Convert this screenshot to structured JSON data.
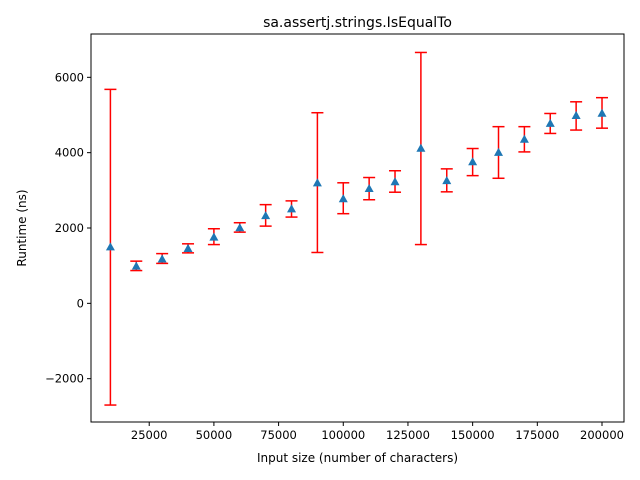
{
  "chart_data": {
    "type": "scatter",
    "title": "sa.assertj.strings.IsEqualTo",
    "xlabel": "Input size (number of characters)",
    "ylabel": "Runtime (ns)",
    "xlim": [
      2500,
      208500
    ],
    "ylim": [
      -3150,
      7150
    ],
    "xticks": [
      25000,
      50000,
      75000,
      100000,
      125000,
      150000,
      175000,
      200000
    ],
    "xtick_labels": [
      "25000",
      "50000",
      "75000",
      "100000",
      "125000",
      "150000",
      "175000",
      "200000"
    ],
    "yticks": [
      -2000,
      0,
      2000,
      4000,
      6000
    ],
    "ytick_labels": [
      "−2000",
      "0",
      "2000",
      "4000",
      "6000"
    ],
    "grid": false,
    "marker": "triangle",
    "marker_color": "#1f77b4",
    "errorbar_color": "#ff0000",
    "points": [
      {
        "x": 10000,
        "y": 1500,
        "low": -2700,
        "high": 5680
      },
      {
        "x": 20000,
        "y": 990,
        "low": 870,
        "high": 1120
      },
      {
        "x": 30000,
        "y": 1180,
        "low": 1060,
        "high": 1320
      },
      {
        "x": 40000,
        "y": 1460,
        "low": 1340,
        "high": 1580
      },
      {
        "x": 50000,
        "y": 1760,
        "low": 1560,
        "high": 1980
      },
      {
        "x": 60000,
        "y": 2010,
        "low": 1890,
        "high": 2140
      },
      {
        "x": 70000,
        "y": 2330,
        "low": 2050,
        "high": 2620
      },
      {
        "x": 80000,
        "y": 2510,
        "low": 2290,
        "high": 2720
      },
      {
        "x": 90000,
        "y": 3200,
        "low": 1350,
        "high": 5060
      },
      {
        "x": 100000,
        "y": 2780,
        "low": 2380,
        "high": 3200
      },
      {
        "x": 110000,
        "y": 3050,
        "low": 2750,
        "high": 3340
      },
      {
        "x": 120000,
        "y": 3230,
        "low": 2950,
        "high": 3520
      },
      {
        "x": 130000,
        "y": 4120,
        "low": 1560,
        "high": 6660
      },
      {
        "x": 140000,
        "y": 3260,
        "low": 2960,
        "high": 3570
      },
      {
        "x": 150000,
        "y": 3760,
        "low": 3390,
        "high": 4110
      },
      {
        "x": 160000,
        "y": 4010,
        "low": 3320,
        "high": 4690
      },
      {
        "x": 170000,
        "y": 4360,
        "low": 4020,
        "high": 4690
      },
      {
        "x": 180000,
        "y": 4780,
        "low": 4510,
        "high": 5040
      },
      {
        "x": 190000,
        "y": 4990,
        "low": 4600,
        "high": 5350
      },
      {
        "x": 200000,
        "y": 5050,
        "low": 4650,
        "high": 5460
      }
    ]
  }
}
